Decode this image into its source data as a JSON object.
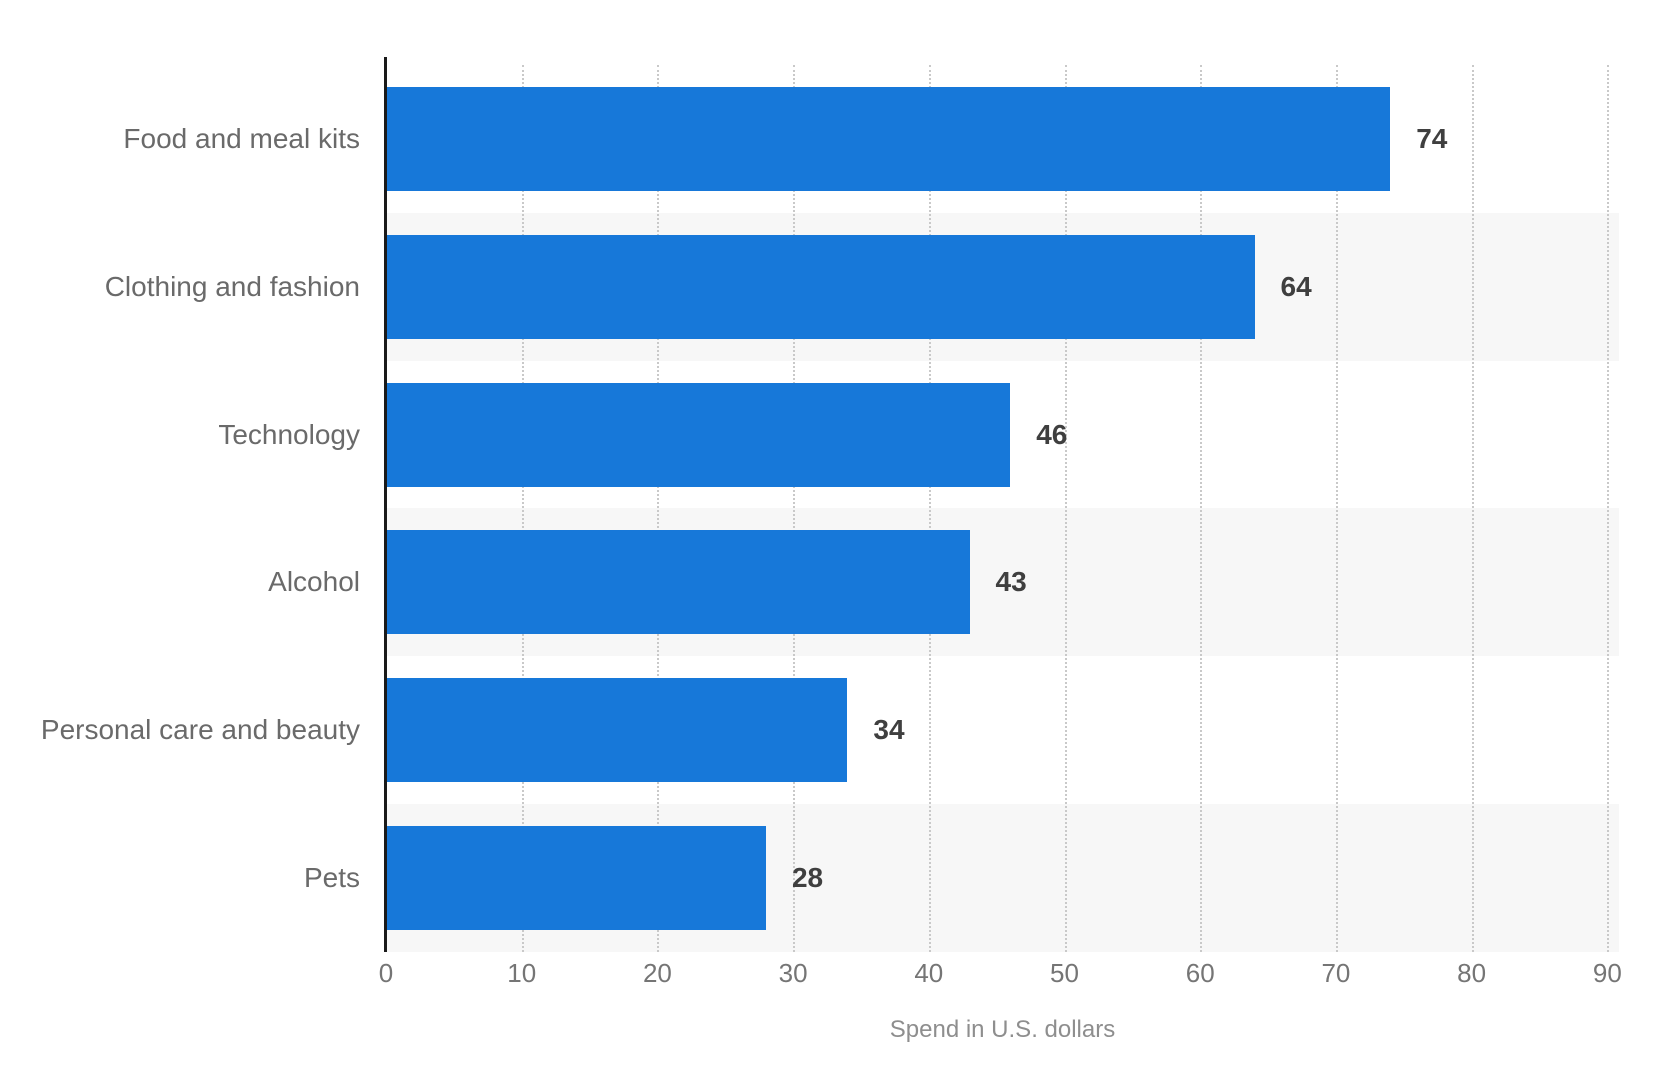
{
  "chart_data": {
    "type": "bar",
    "orientation": "horizontal",
    "categories": [
      "Food and meal kits",
      "Clothing and fashion",
      "Technology",
      "Alcohol",
      "Personal care and beauty",
      "Pets"
    ],
    "values": [
      74,
      64,
      46,
      43,
      34,
      28
    ],
    "title": "",
    "xlabel": "Spend in U.S. dollars",
    "ylabel": "",
    "xlim": [
      0,
      90
    ],
    "x_ticks": [
      0,
      10,
      20,
      30,
      40,
      50,
      60,
      70,
      80,
      90
    ],
    "grid": "vertical-dotted",
    "legend": "none",
    "data_labels_shown": true,
    "colors": {
      "bar": "#1778d9",
      "row_stripe": "#f7f7f7",
      "gridline": "#c9c9c9",
      "axis_line": "#1a1a1a",
      "category_label": "#6a6a6a",
      "value_label": "#3f3f3f",
      "tick_label": "#757575",
      "axis_title": "#8e8e8e"
    }
  }
}
